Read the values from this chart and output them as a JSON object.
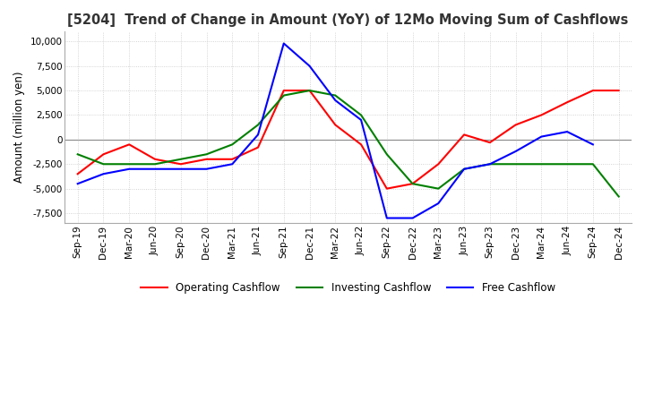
{
  "title": "[5204]  Trend of Change in Amount (YoY) of 12Mo Moving Sum of Cashflows",
  "ylabel": "Amount (million yen)",
  "ylim": [
    -8500,
    11000
  ],
  "yticks": [
    -7500,
    -5000,
    -2500,
    0,
    2500,
    5000,
    7500,
    10000
  ],
  "background_color": "#ffffff",
  "grid_color": "#c8c8c8",
  "x_labels": [
    "Sep-19",
    "Dec-19",
    "Mar-20",
    "Jun-20",
    "Sep-20",
    "Dec-20",
    "Mar-21",
    "Jun-21",
    "Sep-21",
    "Dec-21",
    "Mar-22",
    "Jun-22",
    "Sep-22",
    "Dec-22",
    "Mar-23",
    "Jun-23",
    "Sep-23",
    "Dec-23",
    "Mar-24",
    "Jun-24",
    "Sep-24",
    "Dec-24"
  ],
  "operating_cashflow": [
    -3500,
    -1500,
    -500,
    -2000,
    -2500,
    -2000,
    -2000,
    -800,
    5000,
    5000,
    1500,
    -500,
    -5000,
    -4500,
    -2500,
    500,
    -300,
    1500,
    2500,
    3800,
    5000,
    5000
  ],
  "investing_cashflow": [
    -1500,
    -2500,
    -2500,
    -2500,
    -2000,
    -1500,
    -500,
    1500,
    4500,
    5000,
    4500,
    2500,
    -1500,
    -4500,
    -5000,
    -3000,
    -2500,
    -2500,
    -2500,
    -2500,
    -2500,
    -5800
  ],
  "free_cashflow": [
    -4500,
    -3500,
    -3000,
    -3000,
    -3000,
    -3000,
    -2500,
    500,
    9800,
    7500,
    4000,
    2000,
    -8000,
    -8000,
    -6500,
    -3000,
    -2500,
    -1200,
    300,
    800,
    -500,
    null
  ],
  "operating_color": "#ff0000",
  "investing_color": "#008000",
  "free_color": "#0000ff",
  "line_width": 1.5
}
